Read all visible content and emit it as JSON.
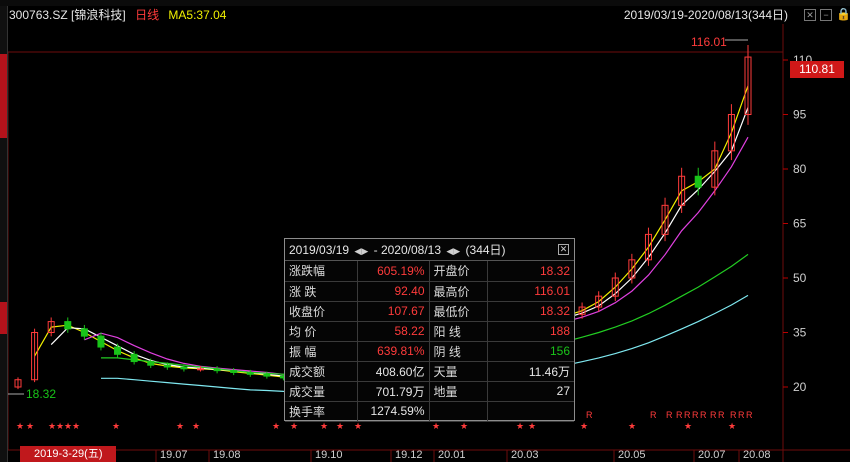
{
  "header": {
    "stock": "300763.SZ [锦浪科技]",
    "period": "日线",
    "ma5": "MA5:37.04",
    "range": "2019/03/19-2020/08/13(344日)"
  },
  "price_axis": {
    "ticks": [
      "110",
      "95",
      "80",
      "65",
      "50",
      "35",
      "20"
    ],
    "last_price": "110.81",
    "high_label": "116.01",
    "low_label": "18.32"
  },
  "x_axis": {
    "ticks": [
      "19.07",
      "19.08",
      "19.10",
      "19.12",
      "20.01",
      "20.03",
      "20.05",
      "20.07",
      "20.08"
    ],
    "cursor_date": "2019-3-29(五)"
  },
  "info_panel": {
    "title_start": "2019/03/19",
    "title_end": "2020/08/13",
    "title_days": "(344日)",
    "rows": [
      {
        "l1": "涨跌幅",
        "v1": "605.19%",
        "c1": "red",
        "l2": "开盘价",
        "v2": "18.32",
        "c2": "red"
      },
      {
        "l1": "涨 跌",
        "v1": "92.40",
        "c1": "red",
        "l2": "最高价",
        "v2": "116.01",
        "c2": "red"
      },
      {
        "l1": "收盘价",
        "v1": "107.67",
        "c1": "red",
        "l2": "最低价",
        "v2": "18.32",
        "c2": "red"
      },
      {
        "l1": "均 价",
        "v1": "58.22",
        "c1": "red",
        "l2": "阳 线",
        "v2": "188",
        "c2": "red"
      },
      {
        "l1": "振 幅",
        "v1": "639.81%",
        "c1": "red",
        "l2": "阴 线",
        "v2": "156",
        "c2": "green"
      },
      {
        "l1": "成交额",
        "v1": "408.60亿",
        "c1": "white",
        "l2": "天量",
        "v2": "11.46万",
        "c2": "white"
      },
      {
        "l1": "成交量",
        "v1": "701.79万",
        "c1": "white",
        "l2": "地量",
        "v2": "27",
        "c2": "white"
      },
      {
        "l1": "换手率",
        "v1": "1274.59%",
        "c1": "white",
        "l2": "",
        "v2": "",
        "c2": "white"
      }
    ]
  },
  "marker_rows": {
    "star": "★",
    "r": "R"
  },
  "colors": {
    "up": "#ff3b3b",
    "down": "#19c419",
    "ma5": "#f0f000",
    "ma10": "#ffffff",
    "ma20": "#e040e0",
    "ma60": "#22cc22",
    "ma120": "#7fe8f0"
  },
  "chart_data": {
    "type": "candlestick",
    "y_ticks": [
      110,
      95,
      80,
      65,
      50,
      35,
      20
    ],
    "ylim": [
      18,
      116
    ],
    "closes": [
      22,
      35,
      38,
      36,
      34,
      31,
      29,
      27,
      26,
      25.5,
      25,
      25,
      24.5,
      24,
      23.5,
      23,
      22.5,
      22,
      22,
      23,
      24,
      25,
      26,
      27,
      28,
      30,
      31,
      33,
      35,
      36,
      37,
      38,
      39,
      40,
      42,
      45,
      50,
      55,
      62,
      70,
      78,
      75,
      85,
      95,
      110.81
    ],
    "ma_long": [
      null,
      null,
      null,
      null,
      null,
      28,
      28,
      27.5,
      27,
      26.5,
      26,
      25.5,
      25,
      24.5,
      24,
      23.8,
      23.5,
      23.3,
      23,
      23,
      23.2,
      23.5,
      24,
      24.5,
      25,
      25.6,
      26.3,
      27,
      27.8,
      28.6,
      29.5,
      30.4,
      31.4,
      32.5,
      33.7,
      35,
      36.5,
      38.2,
      40.2,
      42.5,
      45,
      47.5,
      50.3,
      53.2,
      56.5
    ]
  }
}
